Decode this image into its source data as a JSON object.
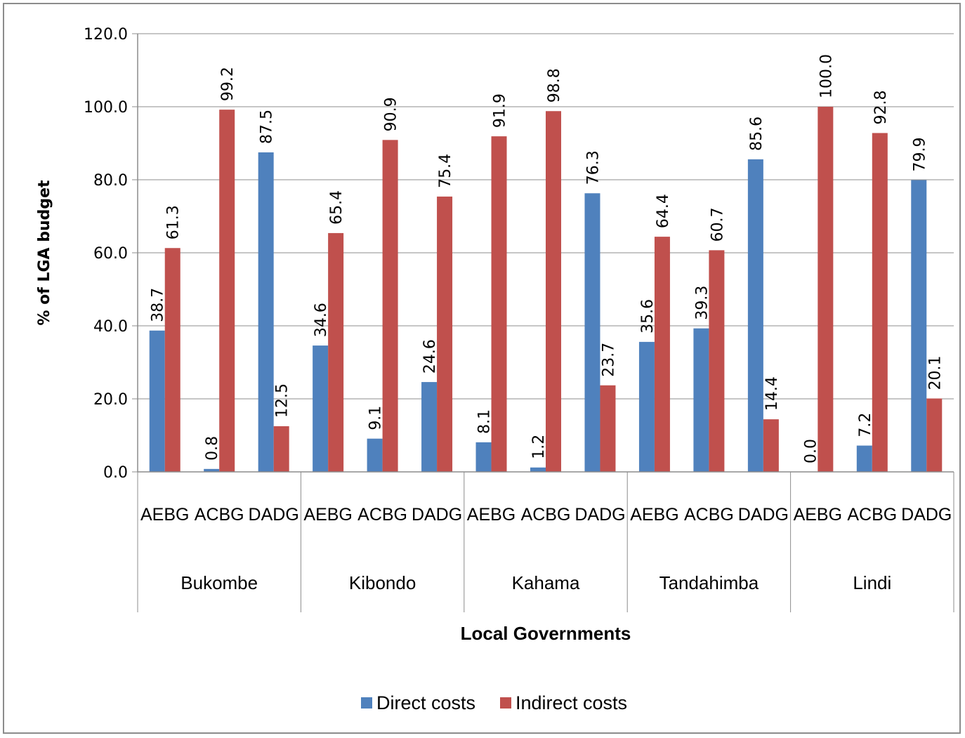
{
  "chart_data": {
    "type": "bar",
    "xlabel": "Local Governments",
    "ylabel": "% of LGA budget",
    "ylim": [
      0,
      120
    ],
    "yticks": [
      0,
      20,
      40,
      60,
      80,
      100,
      120
    ],
    "grid": true,
    "legend_position": "bottom",
    "groups": [
      "Bukombe",
      "Kibondo",
      "Kahama",
      "Tandahimba",
      "Lindi"
    ],
    "subcategories": [
      "AEBG",
      "ACBG",
      "DADG"
    ],
    "series": [
      {
        "name": "Direct costs",
        "color": "#4f81bd",
        "values": [
          38.7,
          0.8,
          87.5,
          34.6,
          9.1,
          24.6,
          8.1,
          1.2,
          76.3,
          35.6,
          39.3,
          85.6,
          0.0,
          7.2,
          79.9
        ]
      },
      {
        "name": "Indirect costs",
        "color": "#c0504d",
        "values": [
          61.3,
          99.2,
          12.5,
          65.4,
          90.9,
          75.4,
          91.9,
          98.8,
          23.7,
          64.4,
          60.7,
          14.4,
          100.0,
          92.8,
          20.1
        ]
      }
    ]
  }
}
